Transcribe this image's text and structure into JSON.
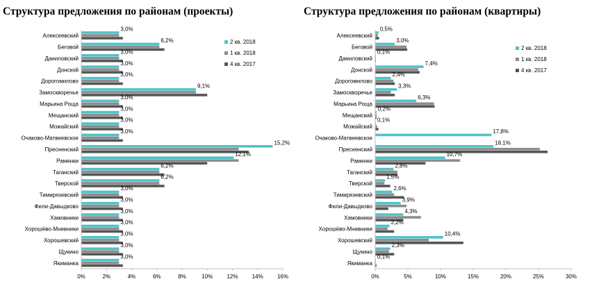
{
  "colors": {
    "q2_2018": "#4fc3c8",
    "q1_2018": "#8c8c8c",
    "q4_2017": "#555555",
    "axis": "#bfbfbf"
  },
  "chart_data": [
    {
      "type": "bar",
      "orientation": "horizontal",
      "title": "Структура предложения по районам (проекты)",
      "categories": [
        "Алексеевский",
        "Беговой",
        "Даниловский",
        "Донской",
        "Дорогомилово",
        "Замоскворечье",
        "Марьина Роща",
        "Мещанский",
        "Можайский",
        "Очаково-Матвеевское",
        "Пресненский",
        "Раменки",
        "Таганский",
        "Тверской",
        "Тимирязевский",
        "Фили-Давыдково",
        "Хамовники",
        "Хорошёво-Мневники",
        "Хорошевский",
        "Щукино",
        "Якиманка"
      ],
      "series": [
        {
          "name": "2 кв. 2018",
          "values": [
            3.0,
            6.2,
            3.0,
            3.0,
            3.0,
            9.1,
            3.0,
            3.0,
            3.0,
            3.0,
            15.2,
            12.1,
            6.2,
            6.2,
            3.0,
            3.0,
            3.0,
            3.0,
            3.0,
            3.0,
            3.0
          ]
        },
        {
          "name": "1 кв. 2018",
          "values": [
            3.0,
            6.2,
            3.0,
            3.0,
            3.0,
            9.1,
            3.0,
            3.0,
            3.0,
            3.0,
            12.5,
            12.5,
            6.2,
            6.2,
            3.0,
            3.0,
            3.0,
            3.0,
            3.0,
            3.0,
            3.0
          ]
        },
        {
          "name": "4 кв. 2017",
          "values": [
            3.3,
            6.6,
            3.3,
            3.3,
            3.3,
            10.0,
            3.3,
            3.3,
            3.3,
            3.3,
            13.3,
            10.0,
            6.6,
            6.6,
            3.3,
            3.3,
            3.3,
            3.3,
            3.3,
            3.3,
            3.3
          ]
        }
      ],
      "data_labels": [
        "3,0%",
        "6,2%",
        "3,0%",
        "3,0%",
        "3,0%",
        "9,1%",
        "3,0%",
        "3,0%",
        "3,0%",
        "3,0%",
        "15,2%",
        "12,1%",
        "6,2%",
        "6,2%",
        "3,0%",
        "3,0%",
        "3,0%",
        "3,0%",
        "3,0%",
        "3,0%",
        "3,0%"
      ],
      "xlim": [
        0,
        16
      ],
      "xticks": [
        0,
        2,
        4,
        6,
        8,
        10,
        12,
        14,
        16
      ],
      "xtick_labels": [
        "0%",
        "2%",
        "4%",
        "6%",
        "8%",
        "10%",
        "12%",
        "14%",
        "16%"
      ],
      "legend_position": "top-right"
    },
    {
      "type": "bar",
      "orientation": "horizontal",
      "title": "Структура предложения по районам (квартиры)",
      "categories": [
        "Алексеевский",
        "Беговой",
        "Даниловский",
        "Донской",
        "Дорогомилово",
        "Замоскворечье",
        "Марьина Роща",
        "Мещанский",
        "Можайский",
        "Очаково-Матвеевское",
        "Пресненский",
        "Раменки",
        "Таганский",
        "Тверской",
        "Тимирязевский",
        "Фили-Давыдково",
        "Хамовники",
        "Хорошёво-Мневники",
        "Хорошевский",
        "Щукино",
        "Якиманка"
      ],
      "series": [
        {
          "name": "2 кв. 2018",
          "values": [
            0.5,
            3.0,
            0.1,
            7.4,
            2.4,
            3.3,
            6.3,
            0.2,
            0.1,
            17.8,
            18.1,
            10.7,
            2.8,
            1.5,
            2.6,
            3.9,
            4.3,
            2.2,
            10.4,
            2.3,
            0.1
          ]
        },
        {
          "name": "1 кв. 2018",
          "values": [
            0.4,
            4.8,
            0.1,
            6.6,
            2.8,
            2.4,
            9.0,
            0.2,
            0.3,
            0.0,
            25.2,
            13.0,
            3.4,
            1.4,
            2.9,
            4.8,
            7.0,
            1.9,
            8.2,
            2.1,
            0.1
          ]
        },
        {
          "name": "4 кв. 2017",
          "values": [
            0.6,
            4.9,
            0.1,
            6.8,
            3.0,
            3.0,
            9.1,
            0.2,
            0.5,
            0.0,
            26.4,
            7.7,
            3.4,
            2.3,
            4.4,
            2.0,
            4.3,
            2.9,
            13.5,
            2.9,
            0.2
          ]
        }
      ],
      "data_labels": [
        "0,5%",
        "3,0%",
        "0,1%",
        "7,4%",
        "2,4%",
        "3,3%",
        "6,3%",
        "0,2%",
        "0,1%",
        "17,8%",
        "18,1%",
        "10,7%",
        "2,8%",
        "1,5%",
        "2,6%",
        "3,9%",
        "4,3%",
        "2,2%",
        "10,4%",
        "2,3%",
        "0,1%"
      ],
      "xlim": [
        0,
        30
      ],
      "xticks": [
        0,
        5,
        10,
        15,
        20,
        25,
        30
      ],
      "xtick_labels": [
        "0%",
        "5%",
        "10%",
        "15%",
        "20%",
        "25%",
        "30%"
      ],
      "legend_position": "top-right"
    }
  ]
}
